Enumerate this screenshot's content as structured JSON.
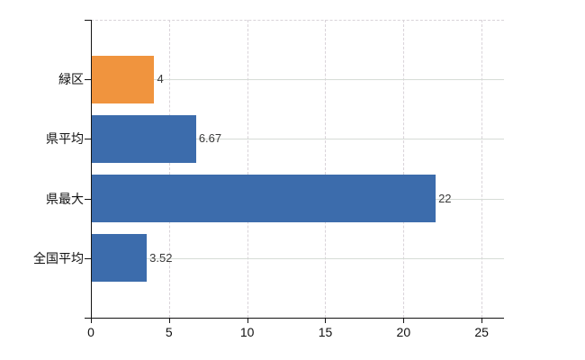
{
  "chart_data": {
    "type": "bar",
    "orientation": "horizontal",
    "title": "",
    "xlabel": "",
    "ylabel": "",
    "categories": [
      "緑区",
      "県平均",
      "県最大",
      "全国平均"
    ],
    "values": [
      4,
      6.67,
      22,
      3.52
    ],
    "value_labels": [
      "4",
      "6.67",
      "22",
      "3.52"
    ],
    "bar_colors": [
      "#F0943E",
      "#3C6CAC",
      "#3C6CAC",
      "#3C6CAC"
    ],
    "xticks": [
      0,
      5,
      10,
      15,
      20,
      25
    ],
    "xtick_labels": [
      "0",
      "5",
      "10",
      "15",
      "20",
      "25"
    ],
    "xlim": [
      0,
      26.43
    ],
    "grid": true,
    "legend": false
  },
  "colors": {
    "background": "#ffffff",
    "axis": "#141414",
    "grid_horizontal": "#d6dcd6",
    "grid_vertical": "#d9d3d9",
    "category_label": "#111111",
    "value_label": "#3a3a3a",
    "bar_blue": "#3C6CAC",
    "bar_orange": "#F0943E"
  }
}
